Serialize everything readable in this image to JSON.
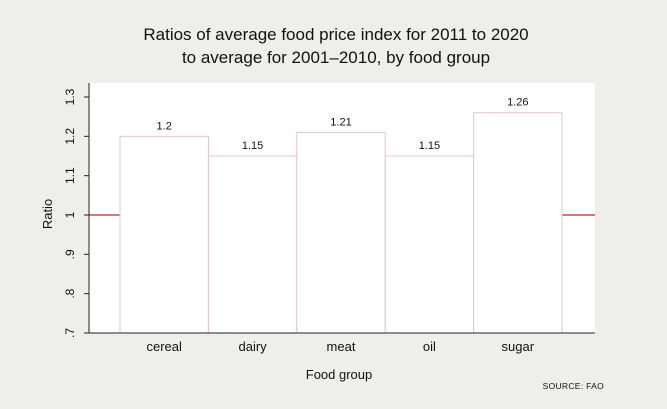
{
  "chart_data": {
    "type": "bar",
    "title": [
      "Ratios of average food price index for 2011 to 2020",
      "to average for 2001–2010, by food group"
    ],
    "xlabel": "Food group",
    "ylabel": "Ratio",
    "categories": [
      "cereal",
      "dairy",
      "meat",
      "oil",
      "sugar"
    ],
    "values": [
      1.2,
      1.15,
      1.21,
      1.15,
      1.26
    ],
    "value_labels": [
      "1.2",
      "1.15",
      "1.21",
      "1.15",
      "1.26"
    ],
    "ylim": [
      0.7,
      1.3
    ],
    "yticks": [
      0.7,
      0.8,
      0.9,
      1.0,
      1.1,
      1.2,
      1.3
    ],
    "ytick_labels": [
      ".7",
      ".8",
      ".9",
      "1",
      "1.1",
      "1.2",
      "1.3"
    ],
    "reference_line": 1.0,
    "grid": false,
    "source": "SOURCE: FAO"
  },
  "colors": {
    "background": "#eeeeed",
    "plot_background": "#ffffff",
    "bar_fill": "#ffffff",
    "bar_stroke": "#e4c4c4",
    "reference_line": "#b02a30",
    "axis": "#222222"
  }
}
